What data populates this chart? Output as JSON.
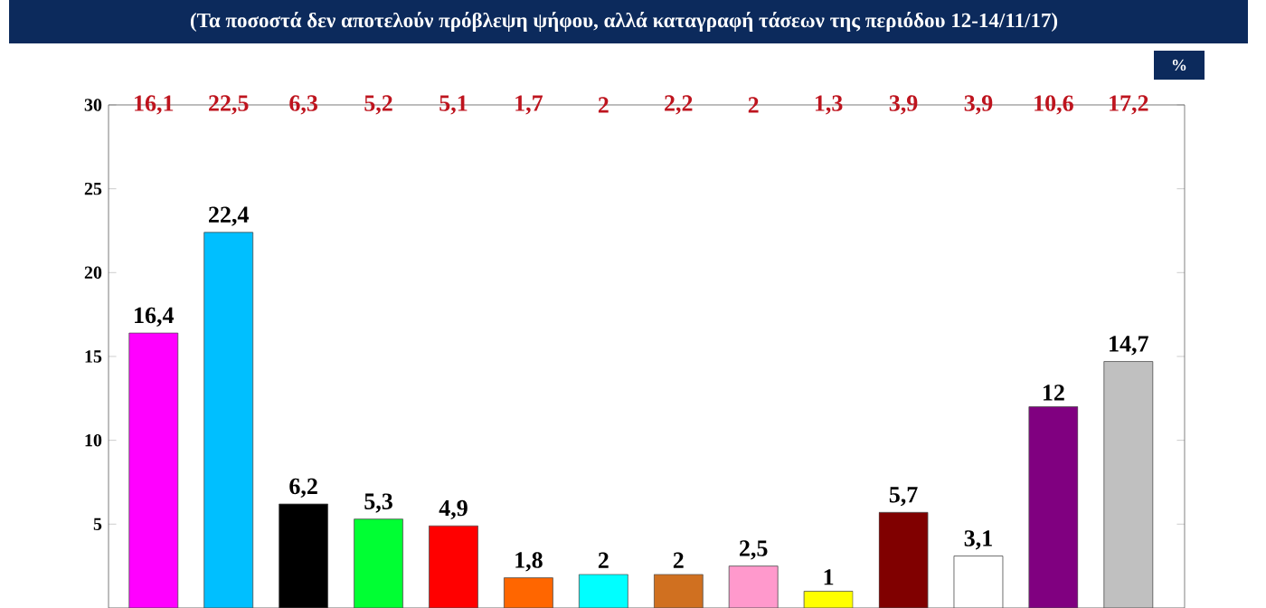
{
  "chart_data": {
    "type": "bar",
    "title": "(Τα ποσοστά δεν αποτελούν πρόβλεψη ψήφου, αλλά καταγραφή τάσεων  της περιόδου 12-14/11/17)",
    "ylabel": "%",
    "categories": [
      null,
      null,
      null,
      null,
      null,
      null,
      null,
      null,
      null,
      null,
      null,
      null,
      null,
      null
    ],
    "values": [
      16.4,
      22.4,
      6.2,
      5.3,
      4.9,
      1.8,
      2,
      2,
      2.5,
      1,
      5.7,
      3.1,
      12,
      14.7
    ],
    "value_labels": [
      "16,4",
      "22,4",
      "6,2",
      "5,3",
      "4,9",
      "1,8",
      "2",
      "2",
      "2,5",
      "1",
      "5,7",
      "3,1",
      "12",
      "14,7"
    ],
    "colors": [
      "#ff00ff",
      "#00bfff",
      "#000000",
      "#00ff33",
      "#ff0000",
      "#ff6600",
      "#00ffff",
      "#d07020",
      "#ff99cc",
      "#ffff00",
      "#800000",
      "#ffffff",
      "#800080",
      "#c0c0c0"
    ],
    "annotations": [
      "16,1",
      "22,5",
      "6,3",
      "5,2",
      "5,1",
      "1,7",
      "2",
      "2,2",
      "2",
      "1,3",
      "3,9",
      "3,9",
      "10,6",
      "17,2"
    ],
    "ylim": [
      0,
      30
    ],
    "yticks": [
      5,
      10,
      15,
      20,
      25,
      30
    ],
    "grid": false
  }
}
